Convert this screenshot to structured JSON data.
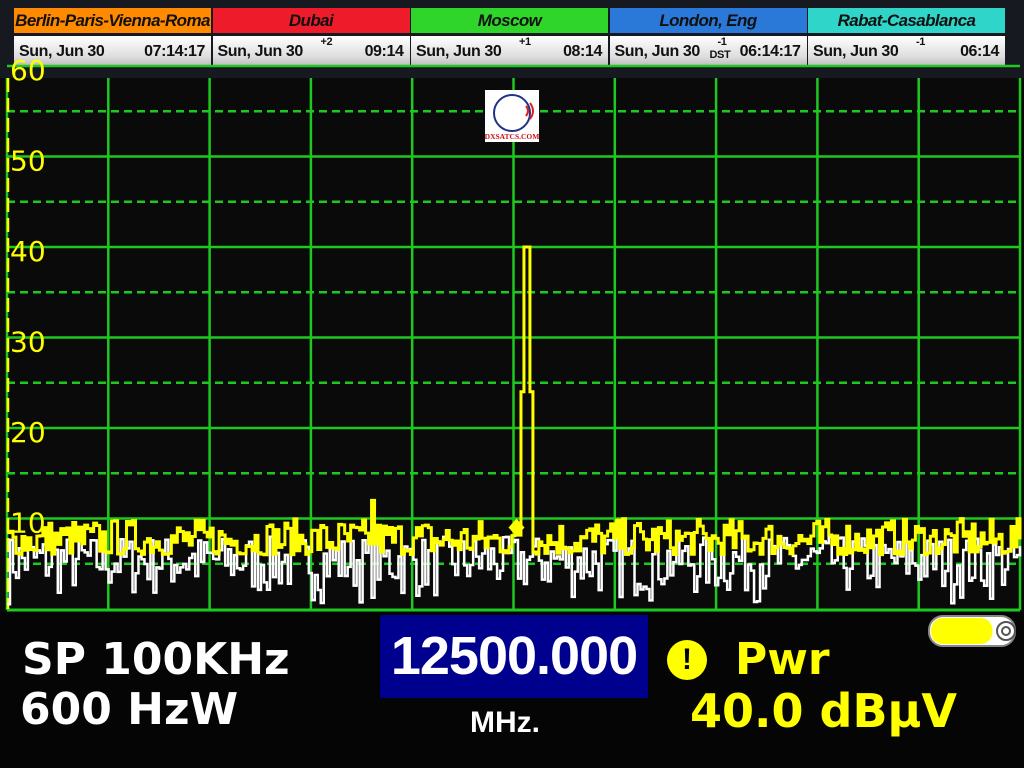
{
  "clocks": [
    {
      "city": "Berlin-Paris-Vienna-Roma",
      "date": "Sun, Jun 30",
      "offset": "",
      "dst": "",
      "time": "07:14:17",
      "color": "#ff8a00"
    },
    {
      "city": "Dubai",
      "date": "Sun, Jun 30",
      "offset": "+2",
      "dst": "",
      "time": "09:14",
      "color": "#ee1b2a"
    },
    {
      "city": "Moscow",
      "date": "Sun, Jun 30",
      "offset": "+1",
      "dst": "",
      "time": "08:14",
      "color": "#2fd52a"
    },
    {
      "city": "London, Eng",
      "date": "Sun, Jun 30",
      "offset": "-1",
      "dst": "DST",
      "time": "06:14:17",
      "color": "#2a78d8"
    },
    {
      "city": "Rabat-Casablanca",
      "date": "Sun, Jun 30",
      "offset": "-1",
      "dst": "",
      "time": "06:14",
      "color": "#2ed5c8"
    }
  ],
  "logo": {
    "text": "DXSATCS.COM"
  },
  "chart_data": {
    "type": "line",
    "title": "",
    "ylim": [
      0,
      60
    ],
    "yticks": [
      "60",
      "50",
      "40",
      "30",
      "20",
      "10"
    ],
    "grid": true,
    "x_center_mhz": 12500.0,
    "span_khz": 100,
    "series": [
      {
        "color": "#ffff00",
        "noise_floor_db": [
          6,
          10
        ],
        "peaks": [
          {
            "x_fraction": 0.512,
            "db": 40
          },
          {
            "x_fraction": 0.36,
            "db": 12
          }
        ]
      },
      {
        "color": "#ffffff",
        "noise_floor_db": [
          0.5,
          8
        ]
      }
    ],
    "marker": {
      "x_fraction": 0.503,
      "db": 9
    }
  },
  "status": {
    "span": "SP 100KHz",
    "rbw": "600 HzW",
    "frequency": "12500.000",
    "frequency_unit": "MHz.",
    "warning_icon": "!",
    "measure_label": "Pwr",
    "level": "40.0 dBµV",
    "battery_level": 0.75
  },
  "colors": {
    "grid": "#1ec81e",
    "trace_max": "#ffff00",
    "trace_live": "#ffffff",
    "freq_box": "#00008f"
  }
}
